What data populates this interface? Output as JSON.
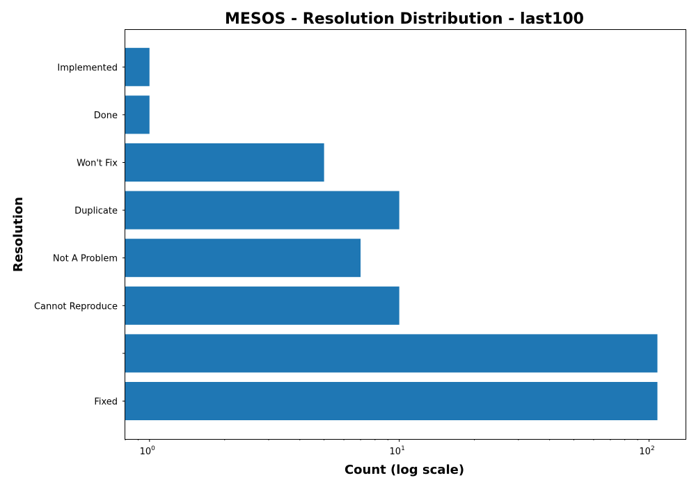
{
  "chart_data": {
    "type": "bar",
    "orientation": "horizontal",
    "title": "MESOS - Resolution Distribution - last100",
    "xlabel": "Count (log scale)",
    "ylabel": "Resolution",
    "x_scale": "log",
    "xlim": [
      0.8,
      140
    ],
    "x_ticks": [
      {
        "value": 1,
        "base": "10",
        "exp": "0"
      },
      {
        "value": 10,
        "base": "10",
        "exp": "1"
      },
      {
        "value": 100,
        "base": "10",
        "exp": "2"
      }
    ],
    "categories": [
      "Fixed",
      "",
      "Cannot Reproduce",
      "Not A Problem",
      "Duplicate",
      "Won't Fix",
      "Done",
      "Implemented"
    ],
    "values": [
      108,
      108,
      10,
      7,
      10,
      5,
      1,
      1
    ],
    "bar_color": "#1f77b4",
    "grid": false
  }
}
